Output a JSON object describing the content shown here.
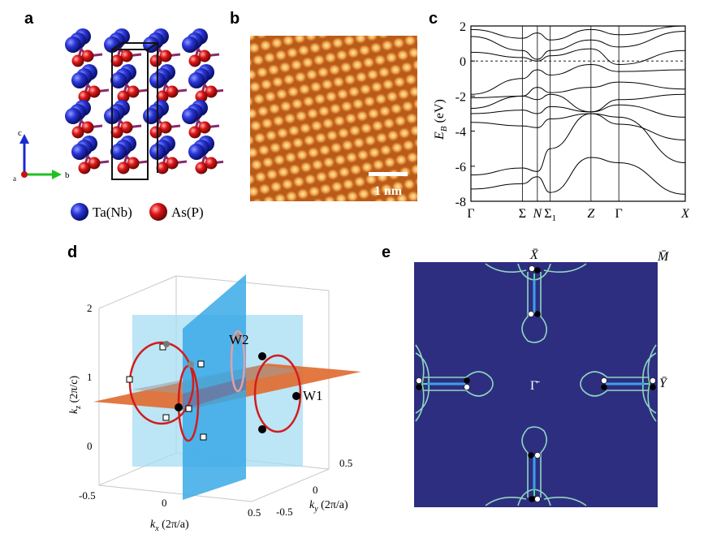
{
  "panel_labels": {
    "a": "a",
    "b": "b",
    "c": "c",
    "d": "d",
    "e": "e"
  },
  "panel_a": {
    "legend": [
      {
        "label": "Ta(Nb)",
        "color": "#2233cc"
      },
      {
        "label": "As(P)",
        "color": "#dd1111"
      }
    ],
    "axes": {
      "c": "c",
      "b": "b",
      "a": "a"
    }
  },
  "panel_b": {
    "scale_bar": "1 nm"
  },
  "panel_c": {
    "ylabel_main": "E",
    "ylabel_sub": "B",
    "ylabel_unit": " (eV)",
    "yticks": [
      "2",
      "0",
      "-2",
      "-4",
      "-6",
      "-8"
    ],
    "kpoints": [
      "Γ",
      "Σ",
      "N",
      "Σ",
      "Z",
      "Γ",
      "X"
    ],
    "kpoint_sub": "1"
  },
  "panel_d": {
    "zlabel_main": "k",
    "zlabel_sub": "z",
    "zlabel_unit": " (2π/c)",
    "xlabel_main": "k",
    "xlabel_sub": "x",
    "xlabel_unit": " (2π/a)",
    "ylabel_main": "k",
    "ylabel_sub": "y",
    "ylabel_unit": " (2π/a)",
    "zticks": [
      "2",
      "1",
      "0"
    ],
    "xticks": [
      "-0.5",
      "0",
      "0.5"
    ],
    "yticks": [
      "0.5",
      "0",
      "-0.5"
    ],
    "labels": [
      "W2",
      "W1"
    ]
  },
  "panel_e": {
    "points": [
      "X̄",
      "M̄",
      "Γ̄",
      "Ȳ"
    ],
    "colors": {
      "background": "#2e2e80",
      "contour": "#8fd6c0"
    }
  },
  "chart_data": {
    "type": "line",
    "title": "",
    "xlabel": "",
    "ylabel": "E_B (eV)",
    "ylim": [
      -8,
      2
    ],
    "x_labels": [
      "Γ",
      "Σ",
      "N",
      "Σ1",
      "Z",
      "Γ",
      "X"
    ],
    "x_positions": [
      0,
      0.24,
      0.31,
      0.37,
      0.56,
      0.69,
      1.0
    ],
    "series": [
      {
        "x": [
          0,
          0.24,
          0.31,
          0.37,
          0.56,
          0.69,
          1.0
        ],
        "y": [
          -7.3,
          -7.0,
          -6.6,
          -7.5,
          -5.5,
          -5.8,
          -7.6
        ]
      },
      {
        "x": [
          0,
          0.24,
          0.31,
          0.37,
          0.56,
          0.69,
          1.0
        ],
        "y": [
          -6.5,
          -6.1,
          -6.3,
          -5.0,
          -3.0,
          -3.2,
          -5.8
        ]
      },
      {
        "x": [
          0,
          0.24,
          0.31,
          0.37,
          0.56,
          0.69,
          1.0
        ],
        "y": [
          -3.5,
          -3.7,
          -3.8,
          -3.3,
          -3.0,
          -3.6,
          -4.5
        ]
      },
      {
        "x": [
          0,
          0.24,
          0.31,
          0.37,
          0.56,
          0.69,
          1.0
        ],
        "y": [
          -3.0,
          -2.8,
          -3.0,
          -2.6,
          -2.9,
          -2.5,
          -3.2
        ]
      },
      {
        "x": [
          0,
          0.24,
          0.31,
          0.37,
          0.56,
          0.69,
          1.0
        ],
        "y": [
          -2.7,
          -2.0,
          -2.2,
          -1.9,
          -2.9,
          -2.2,
          -1.9
        ]
      },
      {
        "x": [
          0,
          0.24,
          0.31,
          0.37,
          0.56,
          0.69,
          1.0
        ],
        "y": [
          -2.1,
          -2.0,
          -1.5,
          -1.8,
          -1.5,
          -1.2,
          -1.6
        ]
      },
      {
        "x": [
          0,
          0.24,
          0.31,
          0.37,
          0.56,
          0.69,
          1.0
        ],
        "y": [
          -1.9,
          -1.0,
          -0.5,
          -0.8,
          -0.2,
          -0.6,
          -0.5
        ]
      },
      {
        "x": [
          0,
          0.24,
          0.31,
          0.37,
          0.56,
          0.69,
          1.0
        ],
        "y": [
          0.5,
          0.2,
          0.0,
          0.3,
          0.7,
          -0.2,
          0.6
        ]
      },
      {
        "x": [
          0,
          0.24,
          0.31,
          0.37,
          0.56,
          0.69,
          1.0
        ],
        "y": [
          1.4,
          0.6,
          0.1,
          0.6,
          1.2,
          0.8,
          1.7
        ]
      },
      {
        "x": [
          0,
          0.24,
          0.31,
          0.37,
          0.56,
          0.69,
          1.0
        ],
        "y": [
          1.8,
          1.3,
          1.6,
          1.2,
          1.8,
          1.5,
          2.0
        ]
      }
    ]
  }
}
